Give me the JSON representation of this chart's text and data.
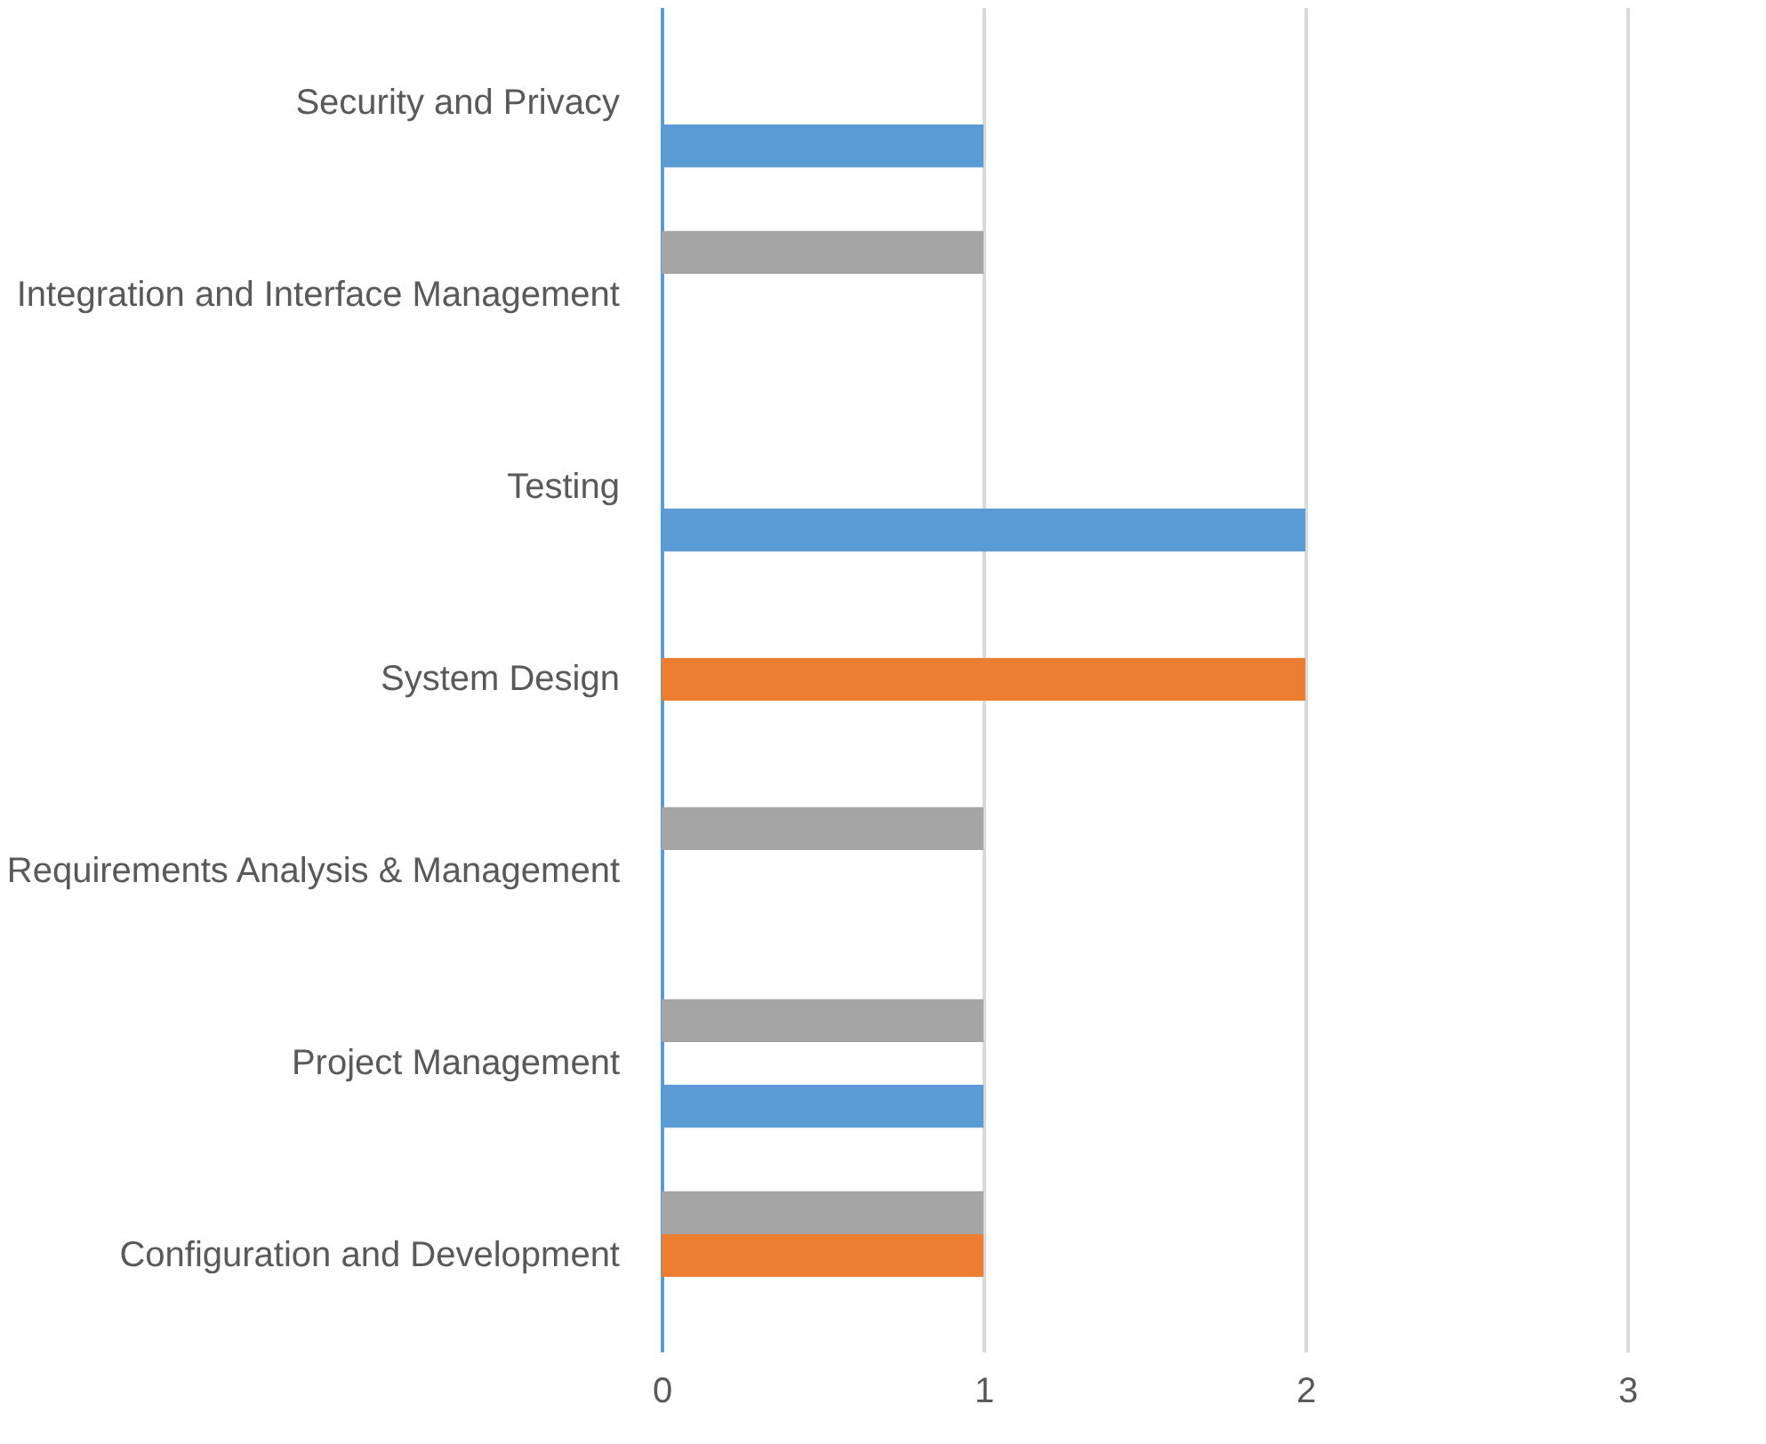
{
  "chart_data": {
    "type": "bar",
    "orientation": "horizontal",
    "categories": [
      "Security and Privacy",
      "Integration and Interface Management",
      "Testing",
      "System Design",
      "Requirements Analysis & Management",
      "Project Management",
      "Configuration and Development"
    ],
    "series": [
      {
        "color": "#5b9bd5",
        "values": [
          1,
          null,
          2,
          null,
          null,
          1,
          null
        ]
      },
      {
        "color": "#ed7d31",
        "values": [
          null,
          null,
          null,
          2,
          null,
          null,
          1
        ]
      },
      {
        "color": "#a5a5a5",
        "values": [
          null,
          1,
          null,
          null,
          1,
          1,
          1
        ]
      }
    ],
    "xlim": [
      0,
      3
    ],
    "xticks": [
      0,
      1,
      2,
      3
    ],
    "grid": "x",
    "legend": false
  }
}
